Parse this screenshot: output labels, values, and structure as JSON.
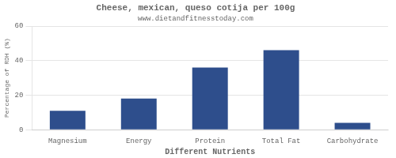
{
  "chart_data": {
    "type": "bar",
    "title": "Cheese, mexican, queso cotija per 100g",
    "subtitle": "www.dietandfitnesstoday.com",
    "xlabel": "Different Nutrients",
    "ylabel": "Percentage of RDH (%)",
    "categories": [
      "Magnesium",
      "Energy",
      "Protein",
      "Total Fat",
      "Carbohydrate"
    ],
    "values": [
      11,
      18,
      36,
      46,
      4
    ],
    "color": "#2e4e8c",
    "ylim": [
      0,
      60
    ],
    "yticks": [
      0,
      20,
      40,
      60
    ],
    "grid": true
  }
}
